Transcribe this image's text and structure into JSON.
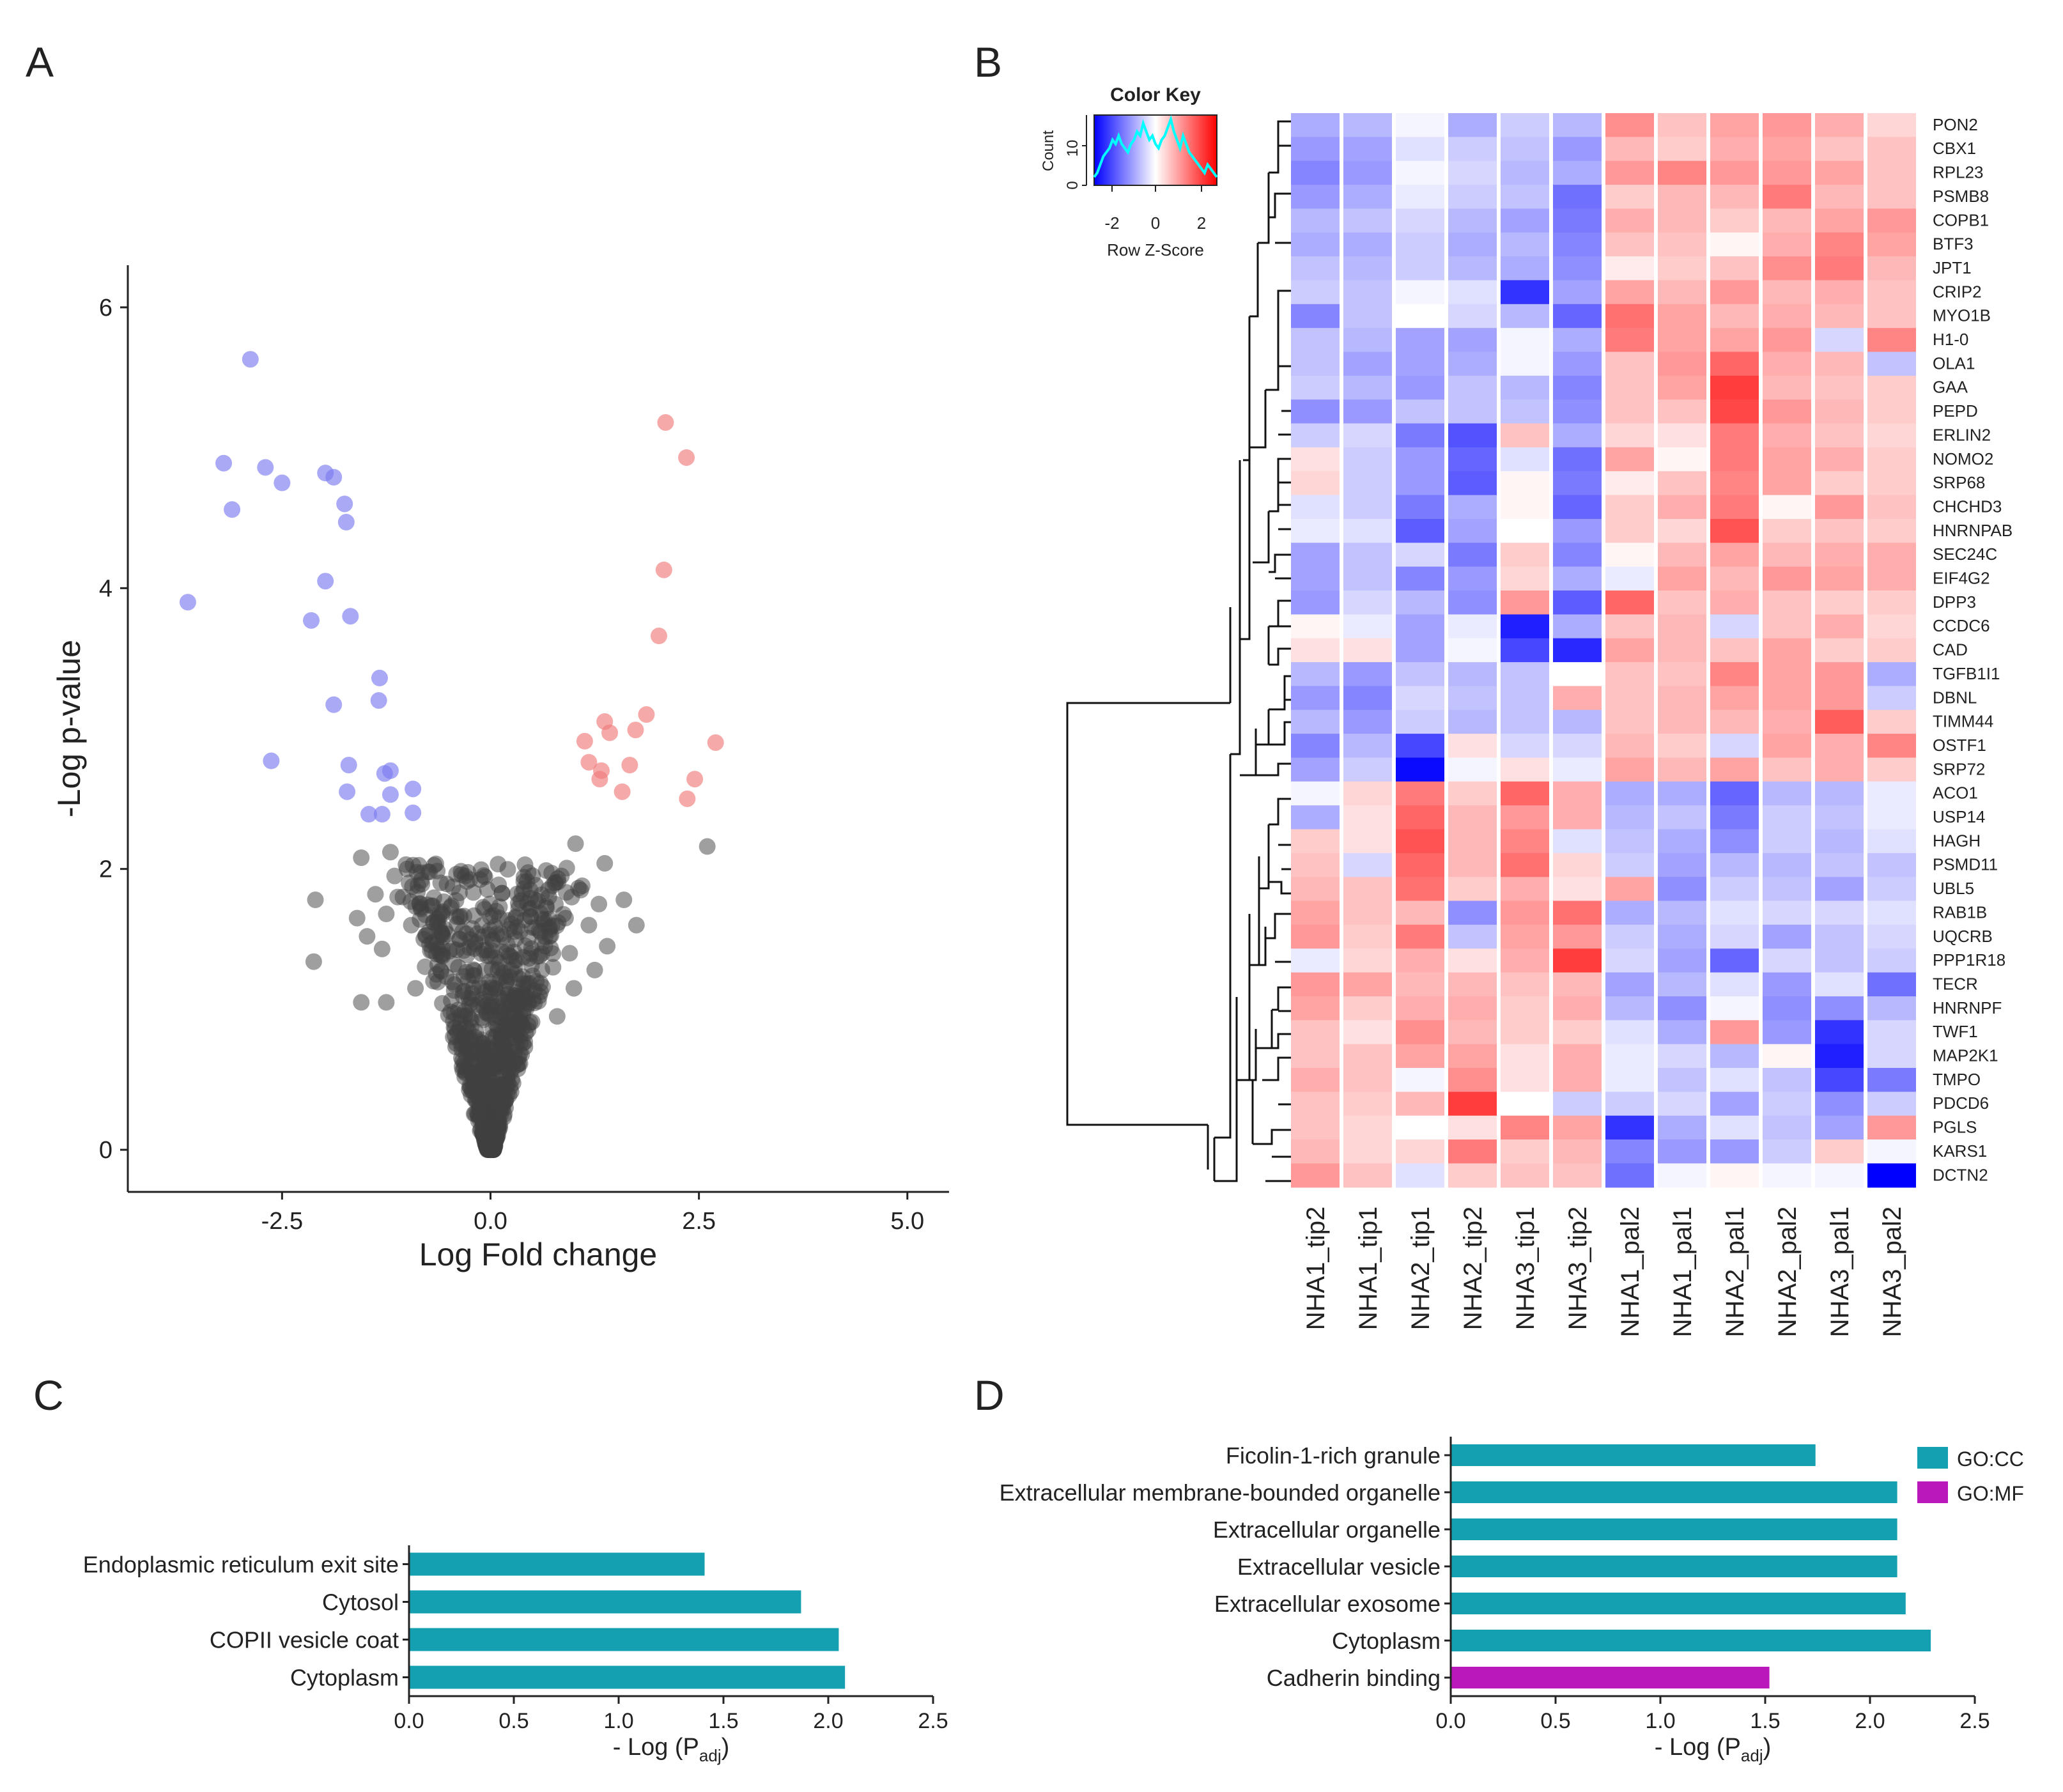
{
  "panels": {
    "a": "A",
    "b": "B",
    "c": "C",
    "d": "D"
  },
  "colors": {
    "up": "#f07b7b",
    "down": "#7b7bf0",
    "ns": "#404040",
    "go_cc": "#14a0b0",
    "go_mf": "#bb18bb",
    "hm_low": "#0000ff",
    "hm_mid": "#ffffff",
    "hm_high": "#ff0000",
    "density": "#00ffff"
  },
  "chart_data": [
    {
      "type": "scatter",
      "panel": "A",
      "title": "",
      "xlabel": "Log Fold change",
      "ylabel": "-Log p-value",
      "xlim": [
        -4.35,
        5.5
      ],
      "ylim": [
        -0.3,
        6.3
      ],
      "xticks": [
        -2.5,
        0.0,
        2.5,
        5.0
      ],
      "xtick_labels": [
        "-2.5",
        "0.0",
        "2.5",
        "5.0"
      ],
      "yticks": [
        0,
        2,
        4,
        6
      ],
      "ytick_labels": [
        "0",
        "2",
        "4",
        "6"
      ],
      "series": [
        {
          "name": "down",
          "color": "#7b7bf0",
          "points": [
            [
              -2.88,
              5.63
            ],
            [
              -3.2,
              4.89
            ],
            [
              -2.7,
              4.86
            ],
            [
              -3.1,
              4.56
            ],
            [
              -2.5,
              4.75
            ],
            [
              -1.98,
              4.82
            ],
            [
              -1.88,
              4.79
            ],
            [
              -1.75,
              4.6
            ],
            [
              -1.73,
              4.47
            ],
            [
              -1.98,
              4.05
            ],
            [
              -3.63,
              3.9
            ],
            [
              -2.15,
              3.77
            ],
            [
              -1.68,
              3.8
            ],
            [
              -1.33,
              3.36
            ],
            [
              -1.88,
              3.17
            ],
            [
              -1.34,
              3.2
            ],
            [
              -2.63,
              2.77
            ],
            [
              -1.7,
              2.74
            ],
            [
              -1.2,
              2.7
            ],
            [
              -1.27,
              2.68
            ],
            [
              -1.72,
              2.55
            ],
            [
              -1.2,
              2.53
            ],
            [
              -0.93,
              2.57
            ],
            [
              -1.46,
              2.39
            ],
            [
              -1.3,
              2.39
            ],
            [
              -0.93,
              2.4
            ]
          ]
        },
        {
          "name": "up",
          "color": "#f07b7b",
          "points": [
            [
              2.1,
              5.18
            ],
            [
              2.35,
              4.93
            ],
            [
              2.08,
              4.13
            ],
            [
              2.02,
              3.66
            ],
            [
              1.87,
              3.1
            ],
            [
              1.37,
              3.05
            ],
            [
              1.43,
              2.97
            ],
            [
              1.74,
              2.99
            ],
            [
              1.13,
              2.91
            ],
            [
              2.7,
              2.9
            ],
            [
              1.18,
              2.76
            ],
            [
              1.33,
              2.7
            ],
            [
              1.67,
              2.74
            ],
            [
              1.31,
              2.64
            ],
            [
              2.45,
              2.64
            ],
            [
              1.58,
              2.55
            ],
            [
              2.36,
              2.5
            ]
          ]
        }
      ],
      "ns_count": 900,
      "ns_points": [
        [
          -1.2,
          2.12
        ],
        [
          -1.0,
          2.0
        ],
        [
          -1.15,
          1.95
        ],
        [
          -1.55,
          2.08
        ],
        [
          -0.75,
          1.98
        ],
        [
          -2.1,
          1.78
        ],
        [
          -1.38,
          1.82
        ],
        [
          -1.05,
          1.8
        ],
        [
          -0.85,
          1.75
        ],
        [
          -1.25,
          1.68
        ],
        [
          -1.6,
          1.65
        ],
        [
          -0.95,
          1.6
        ],
        [
          -2.12,
          1.34
        ],
        [
          -1.48,
          1.52
        ],
        [
          -0.8,
          1.5
        ],
        [
          -1.3,
          1.43
        ],
        [
          -1.55,
          1.05
        ],
        [
          -1.25,
          1.05
        ],
        [
          -0.9,
          1.15
        ],
        [
          -0.65,
          1.25
        ],
        [
          1.02,
          2.18
        ],
        [
          1.37,
          2.04
        ],
        [
          0.85,
          1.95
        ],
        [
          1.1,
          1.88
        ],
        [
          1.6,
          1.78
        ],
        [
          0.7,
          1.8
        ],
        [
          1.3,
          1.75
        ],
        [
          0.9,
          1.65
        ],
        [
          1.18,
          1.6
        ],
        [
          0.6,
          1.55
        ],
        [
          1.4,
          1.45
        ],
        [
          0.95,
          1.4
        ],
        [
          0.75,
          1.3
        ],
        [
          1.25,
          1.28
        ],
        [
          0.55,
          1.2
        ],
        [
          1.0,
          1.15
        ],
        [
          2.6,
          2.16
        ],
        [
          1.75,
          1.6
        ],
        [
          0.45,
          1.05
        ],
        [
          0.8,
          0.95
        ]
      ]
    },
    {
      "type": "heatmap",
      "panel": "B",
      "columns": [
        "NHA1_tip2",
        "NHA1_tip1",
        "NHA2_tip1",
        "NHA2_tip2",
        "NHA3_tip1",
        "NHA3_tip2",
        "NHA1_pal2",
        "NHA1_pal1",
        "NHA2_pal1",
        "NHA2_pal2",
        "NHA3_pal1",
        "NHA3_pal2"
      ],
      "rows": [
        "PON2",
        "CBX1",
        "RPL23",
        "PSMB8",
        "COPB1",
        "BTF3",
        "JPT1",
        "CRIP2",
        "MYO1B",
        "H1-0",
        "OLA1",
        "GAA",
        "PEPD",
        "ERLIN2",
        "NOMO2",
        "SRP68",
        "CHCHD3",
        "HNRNPAB",
        "SEC24C",
        "EIF4G2",
        "DPP3",
        "CCDC6",
        "CAD",
        "TGFB1I1",
        "DBNL",
        "TIMM44",
        "OSTF1",
        "SRP72",
        "ACO1",
        "USP14",
        "HAGH",
        "PSMD11",
        "UBL5",
        "RAB1B",
        "UQCRB",
        "PPP1R18",
        "TECR",
        "HNRNPF",
        "TWF1",
        "MAP2K1",
        "TMPO",
        "PDCD6",
        "PGLS",
        "KARS1",
        "DCTN2"
      ],
      "values": [
        [
          -0.8,
          -0.7,
          -0.1,
          -0.8,
          -0.5,
          -0.7,
          1.1,
          0.6,
          0.9,
          1.0,
          0.8,
          0.4
        ],
        [
          -1.0,
          -0.9,
          -0.3,
          -0.5,
          -0.6,
          -1.0,
          0.7,
          0.5,
          0.8,
          0.9,
          0.6,
          0.6
        ],
        [
          -1.2,
          -1.0,
          -0.1,
          -0.4,
          -0.7,
          -0.8,
          1.0,
          1.2,
          1.0,
          1.0,
          0.9,
          0.6
        ],
        [
          -1.0,
          -0.8,
          -0.2,
          -0.5,
          -0.6,
          -1.4,
          0.5,
          0.7,
          0.7,
          1.3,
          0.7,
          0.6
        ],
        [
          -0.7,
          -0.6,
          -0.4,
          -0.7,
          -0.9,
          -1.3,
          0.8,
          0.7,
          0.5,
          0.7,
          0.9,
          1.0
        ],
        [
          -0.8,
          -0.8,
          -0.5,
          -0.8,
          -0.7,
          -1.2,
          0.6,
          0.6,
          0.1,
          0.8,
          1.2,
          0.9
        ],
        [
          -0.6,
          -0.7,
          -0.5,
          -0.7,
          -0.8,
          -1.1,
          0.2,
          0.5,
          0.6,
          1.1,
          1.3,
          0.7
        ],
        [
          -0.5,
          -0.6,
          -0.1,
          -0.3,
          -2.0,
          -0.9,
          0.9,
          0.7,
          1.0,
          0.7,
          0.8,
          0.6
        ],
        [
          -1.2,
          -0.6,
          0.0,
          -0.4,
          -0.7,
          -1.5,
          1.4,
          0.9,
          0.7,
          0.8,
          0.7,
          0.6
        ],
        [
          -0.6,
          -0.7,
          -0.9,
          -0.9,
          -0.1,
          -0.8,
          1.3,
          0.9,
          0.9,
          1.0,
          -0.4,
          1.2
        ],
        [
          -0.6,
          -0.9,
          -0.9,
          -0.8,
          -0.1,
          -1.0,
          0.6,
          1.0,
          1.5,
          0.8,
          0.7,
          -0.6
        ],
        [
          -0.5,
          -0.7,
          -1.0,
          -0.6,
          -0.7,
          -1.2,
          0.6,
          0.9,
          1.9,
          0.7,
          0.6,
          0.5
        ],
        [
          -1.1,
          -1.0,
          -0.6,
          -0.6,
          -0.6,
          -1.1,
          0.6,
          0.6,
          1.8,
          1.0,
          0.7,
          0.5
        ],
        [
          -0.5,
          -0.4,
          -1.3,
          -1.7,
          0.6,
          -0.8,
          0.4,
          0.3,
          1.3,
          0.8,
          0.6,
          0.4
        ],
        [
          0.3,
          -0.5,
          -1.0,
          -1.5,
          -0.3,
          -1.4,
          0.9,
          0.1,
          1.3,
          0.9,
          0.8,
          0.5
        ],
        [
          0.4,
          -0.5,
          -1.0,
          -1.6,
          0.1,
          -1.3,
          0.2,
          0.6,
          1.2,
          0.9,
          0.5,
          0.5
        ],
        [
          -0.3,
          -0.5,
          -1.3,
          -0.8,
          0.1,
          -1.5,
          0.5,
          0.8,
          1.3,
          0.1,
          1.0,
          0.6
        ],
        [
          -0.2,
          -0.3,
          -1.6,
          -0.9,
          0.0,
          -1.0,
          0.5,
          0.4,
          1.7,
          0.5,
          0.6,
          0.5
        ],
        [
          -0.9,
          -0.6,
          -0.4,
          -1.3,
          0.5,
          -1.2,
          0.1,
          0.7,
          0.9,
          0.7,
          0.8,
          0.8
        ],
        [
          -0.9,
          -0.6,
          -1.2,
          -1.0,
          0.4,
          -0.8,
          -0.2,
          0.9,
          0.7,
          1.0,
          0.9,
          0.8
        ],
        [
          -1.0,
          -0.4,
          -0.7,
          -1.1,
          1.0,
          -1.6,
          1.5,
          0.6,
          0.8,
          0.6,
          0.5,
          0.5
        ],
        [
          0.1,
          -0.2,
          -0.9,
          -0.2,
          -2.2,
          -0.8,
          0.6,
          0.7,
          -0.4,
          0.6,
          0.8,
          0.4
        ],
        [
          0.3,
          0.3,
          -0.9,
          -0.1,
          -1.8,
          -2.1,
          0.9,
          0.7,
          0.6,
          0.9,
          0.5,
          0.5
        ],
        [
          -0.7,
          -1.0,
          -0.6,
          -0.7,
          -0.6,
          0.0,
          0.6,
          0.6,
          1.2,
          0.9,
          1.0,
          -0.8
        ],
        [
          -1.0,
          -1.2,
          -0.4,
          -0.6,
          -0.6,
          0.8,
          0.6,
          0.7,
          0.9,
          0.9,
          1.0,
          -0.5
        ],
        [
          -0.7,
          -1.0,
          -0.5,
          -0.7,
          -0.6,
          -0.7,
          0.6,
          0.7,
          0.7,
          0.8,
          1.6,
          0.5
        ],
        [
          -1.2,
          -0.7,
          -1.8,
          0.3,
          -0.4,
          -0.4,
          0.7,
          0.5,
          -0.4,
          0.9,
          0.8,
          1.2
        ],
        [
          -0.9,
          -0.5,
          -2.4,
          -0.1,
          0.3,
          -0.2,
          0.9,
          0.7,
          0.9,
          0.6,
          0.8,
          0.5
        ],
        [
          -0.1,
          0.4,
          1.3,
          0.5,
          1.5,
          0.8,
          -0.8,
          -0.8,
          -1.5,
          -0.7,
          -0.7,
          -0.2
        ],
        [
          -0.8,
          0.3,
          1.5,
          0.7,
          1.0,
          0.8,
          -0.7,
          -0.6,
          -1.3,
          -0.5,
          -0.6,
          -0.2
        ],
        [
          0.5,
          0.3,
          1.7,
          0.7,
          1.2,
          -0.3,
          -0.6,
          -0.8,
          -1.1,
          -0.5,
          -0.7,
          -0.3
        ],
        [
          0.6,
          -0.4,
          1.5,
          0.7,
          1.4,
          0.4,
          -0.5,
          -0.9,
          -0.7,
          -0.7,
          -0.6,
          -0.6
        ],
        [
          0.7,
          0.6,
          1.4,
          0.5,
          0.8,
          0.3,
          0.9,
          -1.1,
          -0.5,
          -0.6,
          -0.9,
          -0.5
        ],
        [
          0.9,
          0.6,
          0.7,
          -1.1,
          1.0,
          1.4,
          -0.8,
          -0.7,
          -0.3,
          -0.4,
          -0.4,
          -0.3
        ],
        [
          1.0,
          0.5,
          1.3,
          -0.6,
          0.9,
          1.0,
          -0.5,
          -0.8,
          -0.4,
          -0.9,
          -0.6,
          -0.4
        ],
        [
          -0.2,
          0.4,
          0.8,
          0.3,
          0.8,
          1.9,
          -0.4,
          -0.9,
          -1.5,
          -0.4,
          -0.6,
          -0.5
        ],
        [
          1.0,
          0.9,
          0.7,
          0.7,
          0.6,
          0.7,
          -0.9,
          -0.7,
          -0.3,
          -1.0,
          -0.3,
          -1.4
        ],
        [
          0.9,
          0.5,
          0.8,
          0.8,
          0.5,
          0.8,
          -0.7,
          -1.1,
          -0.1,
          -1.1,
          -1.1,
          -0.7
        ],
        [
          0.6,
          0.3,
          1.1,
          0.7,
          0.5,
          0.5,
          -0.3,
          -0.8,
          1.0,
          -1.0,
          -2.0,
          -0.4
        ],
        [
          0.6,
          0.6,
          0.9,
          0.9,
          0.3,
          0.8,
          -0.2,
          -0.4,
          -0.7,
          0.1,
          -2.2,
          -0.4
        ],
        [
          0.8,
          0.6,
          -0.1,
          1.1,
          0.3,
          0.8,
          -0.2,
          -0.6,
          -0.3,
          -0.6,
          -1.8,
          -1.3
        ],
        [
          0.6,
          0.5,
          0.7,
          1.9,
          0.0,
          -0.5,
          -0.5,
          -0.4,
          -0.9,
          -0.5,
          -1.1,
          -0.5
        ],
        [
          0.6,
          0.4,
          0.0,
          0.3,
          1.2,
          0.9,
          -2.0,
          -0.8,
          -0.3,
          -0.6,
          -0.9,
          1.0
        ],
        [
          0.7,
          0.4,
          0.4,
          1.3,
          0.5,
          0.7,
          -1.2,
          -1.0,
          -1.0,
          -0.5,
          0.5,
          -0.1
        ],
        [
          1.0,
          0.6,
          -0.3,
          0.5,
          0.6,
          0.6,
          -1.4,
          -0.1,
          0.1,
          -0.1,
          -0.1,
          -2.5
        ]
      ],
      "color_key": {
        "title": "Color Key",
        "xlabel": "Row Z-Score",
        "ylabel": "Count",
        "xticks": [
          "-2",
          "0",
          "2"
        ],
        "yticks": [
          "0",
          "10"
        ],
        "density_curve": [
          2,
          3,
          5,
          7,
          8,
          9,
          11,
          10,
          12,
          10,
          9,
          8,
          10,
          11,
          13,
          12,
          15,
          13,
          11,
          12,
          10,
          9,
          11,
          12,
          14,
          16,
          13,
          11,
          9,
          12,
          10,
          8,
          7,
          6,
          5,
          4,
          3,
          5,
          4,
          3,
          2
        ]
      }
    },
    {
      "type": "bar",
      "panel": "C",
      "orientation": "horizontal",
      "categories": [
        "Endoplasmic reticulum exit site",
        "Cytosol",
        "COPII vesicle coat",
        "Cytoplasm"
      ],
      "values": [
        1.41,
        1.87,
        2.05,
        2.08
      ],
      "xlabel": "- Log (P",
      "xlabel_sub": "adj",
      "xlabel_close": ")",
      "xlim": [
        0,
        2.5
      ],
      "xticks": [
        "0.0",
        "0.5",
        "1.0",
        "1.5",
        "2.0",
        "2.5"
      ]
    },
    {
      "type": "bar",
      "panel": "D",
      "orientation": "horizontal",
      "categories": [
        "Ficolin-1-rich granule",
        "Extracellular membrane-bounded organelle",
        "Extracellular organelle",
        "Extracellular vesicle",
        "Extracellular exosome",
        "Cytoplasm",
        "Cadherin binding"
      ],
      "values": [
        1.74,
        2.13,
        2.13,
        2.13,
        2.17,
        2.29,
        1.52
      ],
      "groups": [
        "GO:CC",
        "GO:CC",
        "GO:CC",
        "GO:CC",
        "GO:CC",
        "GO:CC",
        "GO:MF"
      ],
      "legend": [
        "GO:CC",
        "GO:MF"
      ],
      "xlabel": "- Log (P",
      "xlabel_sub": "adj",
      "xlabel_close": ")",
      "xlim": [
        0,
        2.5
      ],
      "xticks": [
        "0.0",
        "0.5",
        "1.0",
        "1.5",
        "2.0",
        "2.5"
      ]
    }
  ]
}
